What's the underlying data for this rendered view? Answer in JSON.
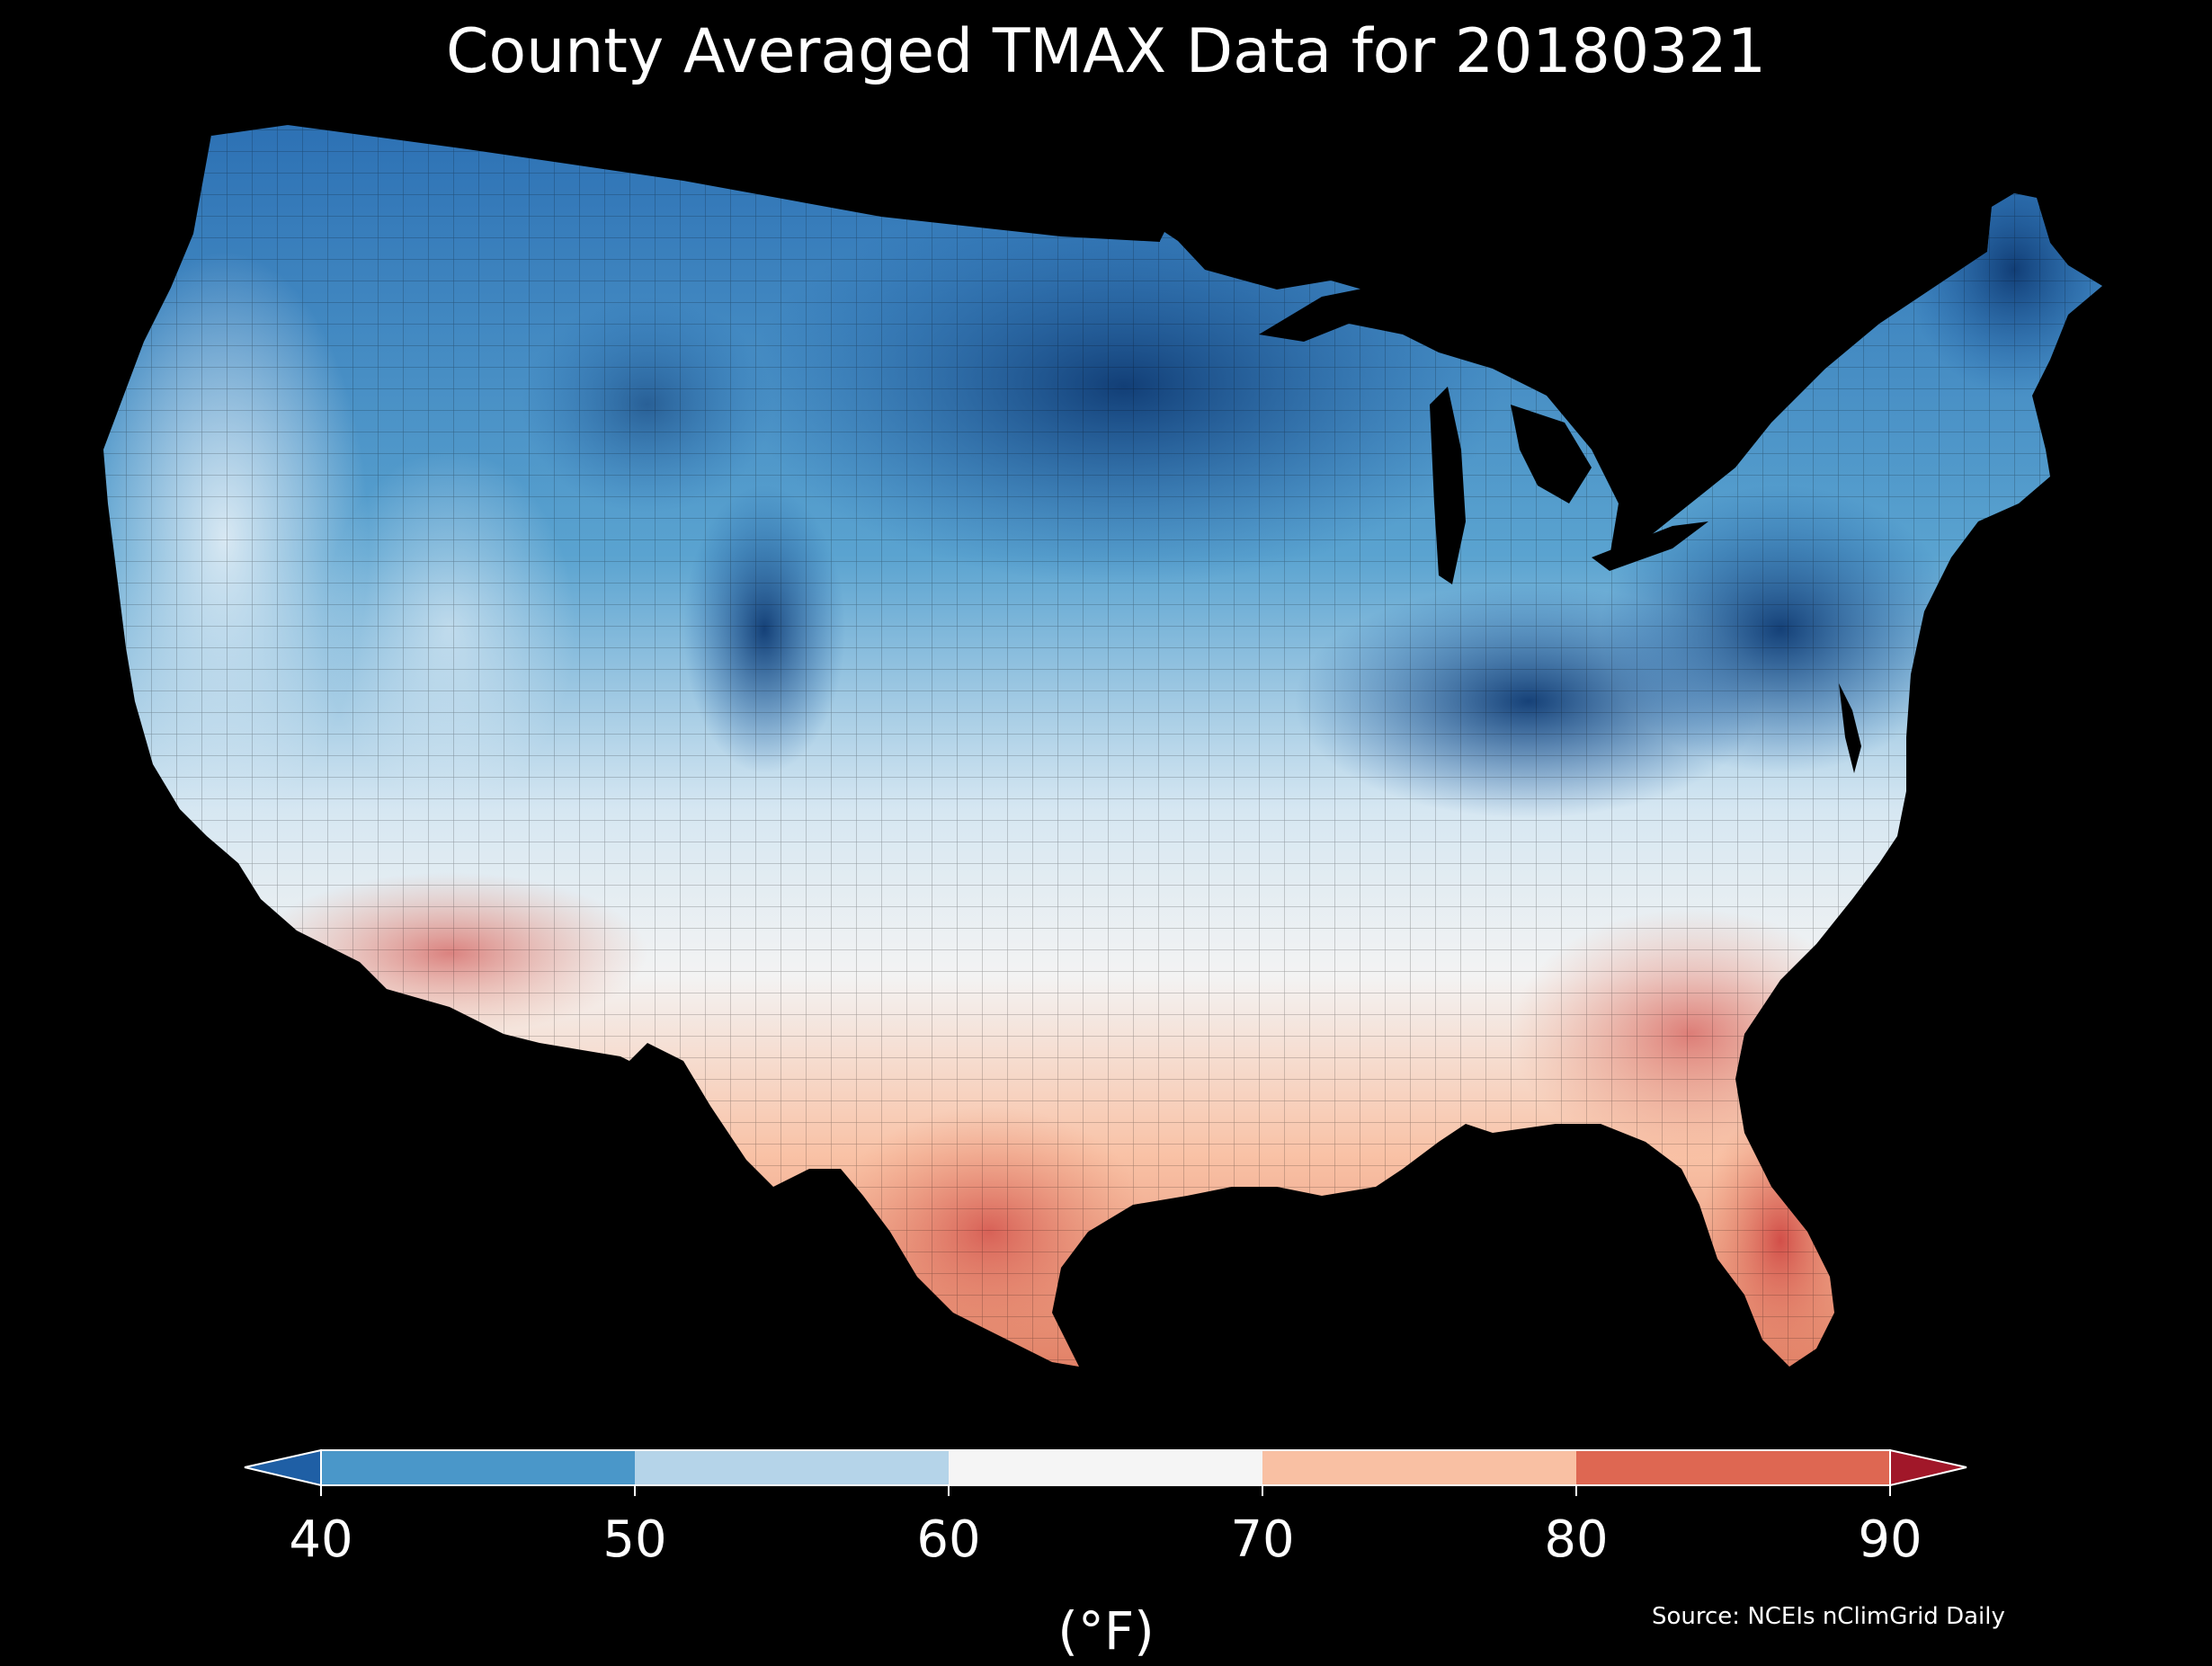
{
  "title": "County Averaged TMAX Data for 20180321",
  "colorbar": {
    "units": "(°F)",
    "ticks": [
      40,
      50,
      60,
      70,
      80,
      90
    ],
    "bins": [
      {
        "from": 40,
        "to": 50,
        "color": "#4a97c9"
      },
      {
        "from": 50,
        "to": 60,
        "color": "#b5d4e9"
      },
      {
        "from": 60,
        "to": 70,
        "color": "#f5f5f5"
      },
      {
        "from": 70,
        "to": 80,
        "color": "#f9c0a3"
      },
      {
        "from": 80,
        "to": 90,
        "color": "#de6752"
      }
    ],
    "under_color": "#1f5fa5",
    "over_color": "#a11729",
    "extend": "both"
  },
  "source": "Source: NCEIs nClimGrid Daily",
  "legend_placement": "bottom",
  "background": "#000000"
}
